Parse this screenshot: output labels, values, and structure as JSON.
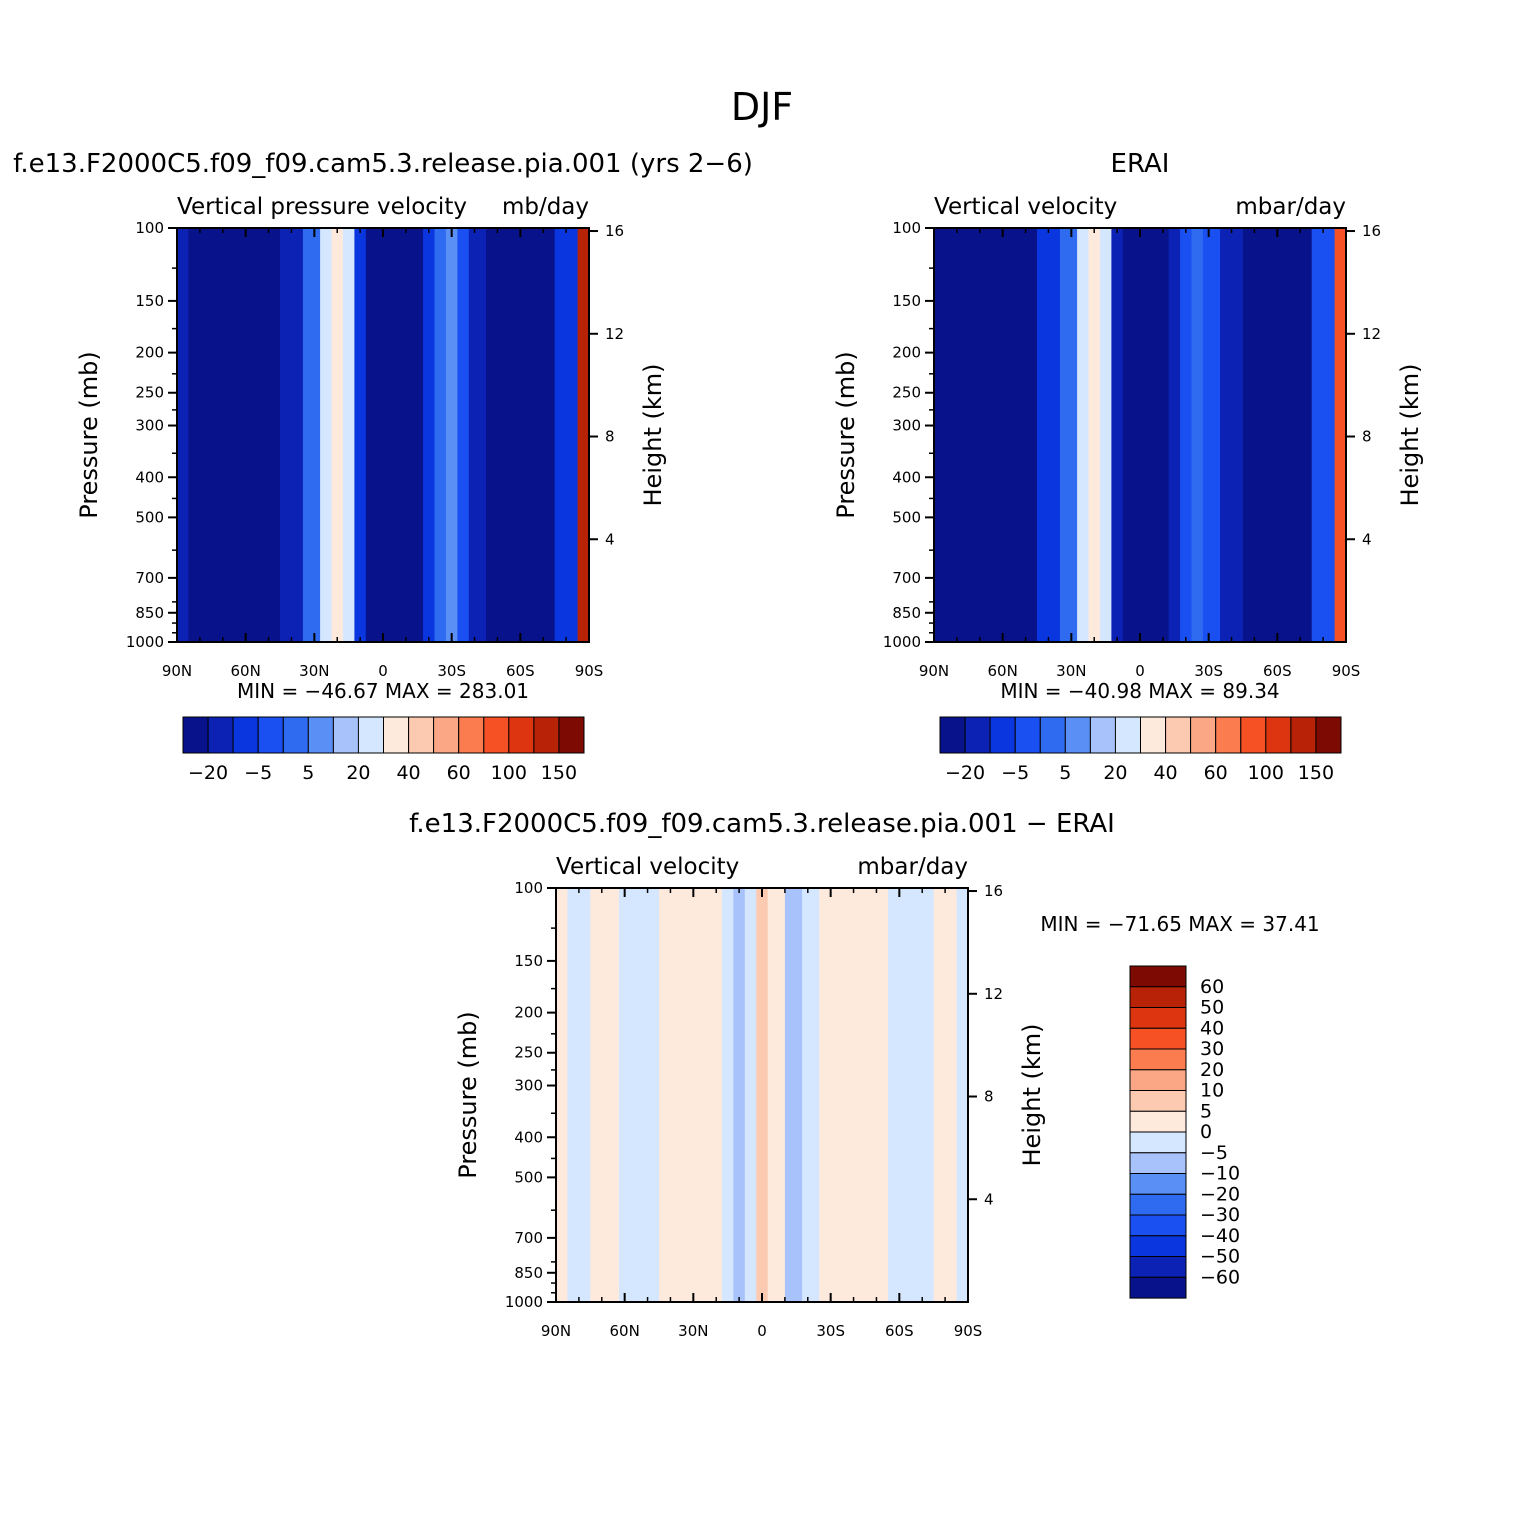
{
  "figure": {
    "title": "DJF"
  },
  "colors": {
    "model_levels": [
      "#08128a",
      "#0b22b5",
      "#0a36df",
      "#1a50f2",
      "#2f6bf0",
      "#5a8ff5",
      "#a8c3fb",
      "#d4e7fe",
      "#feeadd",
      "#fccab0",
      "#fba786",
      "#fb7c4f",
      "#f65125",
      "#dc3510",
      "#b82308",
      "#7e0a04"
    ],
    "diff_levels": [
      "#08128a",
      "#0b22b5",
      "#0a36df",
      "#1a50f2",
      "#2f6bf0",
      "#5a8ff5",
      "#a8c3fb",
      "#d4e7fe",
      "#feeadd",
      "#fccab0",
      "#fba786",
      "#fb7c4f",
      "#f65125",
      "#dc3510",
      "#b82308",
      "#7e0a04"
    ]
  },
  "chart_data": [
    {
      "type": "heatmap",
      "panel_title": "f.e13.F2000C5.f09_f09.cam5.3.release.pia.001 (yrs 2−6)",
      "left_label": "Vertical pressure velocity",
      "right_label": "mb/day",
      "xlabel": "",
      "ylabel": "Pressure (mb)",
      "ylabel_right": "Height (km)",
      "x_ticklabels": [
        "90N",
        "60N",
        "30N",
        "0",
        "30S",
        "60S",
        "90S"
      ],
      "y_ticklabels": [
        "100",
        "150",
        "200",
        "250",
        "300",
        "400",
        "500",
        "700",
        "850",
        "1000"
      ],
      "y2_ticklabels": [
        "16",
        "12",
        "8",
        "4"
      ],
      "xlim": [
        90,
        -90
      ],
      "ylim": [
        1000,
        100
      ],
      "yscale": "log",
      "stats": "MIN = −46.67   MAX = 283.01",
      "min": -46.67,
      "max": 283.01,
      "colorbar_ticklabels": [
        "−20",
        "−5",
        "5",
        "20",
        "40",
        "60",
        "100",
        "150"
      ],
      "colorbar_orientation": "horizontal",
      "bands": [
        {
          "lat": 90,
          "value": -20
        },
        {
          "lat": 80,
          "value": -25
        },
        {
          "lat": 70,
          "value": -28
        },
        {
          "lat": 60,
          "value": -30
        },
        {
          "lat": 50,
          "value": -25
        },
        {
          "lat": 40,
          "value": -18
        },
        {
          "lat": 30,
          "value": -5
        },
        {
          "lat": 25,
          "value": 10
        },
        {
          "lat": 20,
          "value": 22
        },
        {
          "lat": 15,
          "value": 15
        },
        {
          "lat": 10,
          "value": -15
        },
        {
          "lat": 5,
          "value": -40
        },
        {
          "lat": 0,
          "value": -45
        },
        {
          "lat": -5,
          "value": -42
        },
        {
          "lat": -10,
          "value": -38
        },
        {
          "lat": -15,
          "value": -30
        },
        {
          "lat": -20,
          "value": -15
        },
        {
          "lat": -25,
          "value": -5
        },
        {
          "lat": -30,
          "value": 0
        },
        {
          "lat": -35,
          "value": -10
        },
        {
          "lat": -40,
          "value": -20
        },
        {
          "lat": -50,
          "value": -30
        },
        {
          "lat": -55,
          "value": -40
        },
        {
          "lat": -60,
          "value": -35
        },
        {
          "lat": -70,
          "value": -25
        },
        {
          "lat": -80,
          "value": -15
        },
        {
          "lat": -90,
          "value": 100
        }
      ]
    },
    {
      "type": "heatmap",
      "panel_title": "ERAI",
      "left_label": "Vertical velocity",
      "right_label": "mbar/day",
      "xlabel": "",
      "ylabel": "Pressure (mb)",
      "ylabel_right": "Height (km)",
      "x_ticklabels": [
        "90N",
        "60N",
        "30N",
        "0",
        "30S",
        "60S",
        "90S"
      ],
      "y_ticklabels": [
        "100",
        "150",
        "200",
        "250",
        "300",
        "400",
        "500",
        "700",
        "850",
        "1000"
      ],
      "y2_ticklabels": [
        "16",
        "12",
        "8",
        "4"
      ],
      "xlim": [
        90,
        -90
      ],
      "ylim": [
        1000,
        100
      ],
      "yscale": "log",
      "stats": "MIN = −40.98   MAX =   89.34",
      "min": -40.98,
      "max": 89.34,
      "colorbar_ticklabels": [
        "−20",
        "−5",
        "5",
        "20",
        "40",
        "60",
        "100",
        "150"
      ],
      "colorbar_orientation": "horizontal",
      "bands": [
        {
          "lat": 90,
          "value": -25
        },
        {
          "lat": 80,
          "value": -25
        },
        {
          "lat": 70,
          "value": -28
        },
        {
          "lat": 60,
          "value": -35
        },
        {
          "lat": 50,
          "value": -25
        },
        {
          "lat": 40,
          "value": -15
        },
        {
          "lat": 30,
          "value": -5
        },
        {
          "lat": 25,
          "value": 10
        },
        {
          "lat": 20,
          "value": 20
        },
        {
          "lat": 15,
          "value": 10
        },
        {
          "lat": 10,
          "value": -20
        },
        {
          "lat": 5,
          "value": -40
        },
        {
          "lat": 0,
          "value": -40
        },
        {
          "lat": -5,
          "value": -38
        },
        {
          "lat": -10,
          "value": -30
        },
        {
          "lat": -15,
          "value": -20
        },
        {
          "lat": -20,
          "value": -10
        },
        {
          "lat": -25,
          "value": -5
        },
        {
          "lat": -30,
          "value": -8
        },
        {
          "lat": -40,
          "value": -18
        },
        {
          "lat": -50,
          "value": -28
        },
        {
          "lat": -60,
          "value": -32
        },
        {
          "lat": -70,
          "value": -25
        },
        {
          "lat": -80,
          "value": -10
        },
        {
          "lat": -90,
          "value": 60
        }
      ]
    },
    {
      "type": "heatmap",
      "panel_title": "f.e13.F2000C5.f09_f09.cam5.3.release.pia.001 − ERAI",
      "left_label": "Vertical velocity",
      "right_label": "mbar/day",
      "xlabel": "",
      "ylabel": "Pressure (mb)",
      "ylabel_right": "Height (km)",
      "x_ticklabels": [
        "90N",
        "60N",
        "30N",
        "0",
        "30S",
        "60S",
        "90S"
      ],
      "y_ticklabels": [
        "100",
        "150",
        "200",
        "250",
        "300",
        "400",
        "500",
        "700",
        "850",
        "1000"
      ],
      "y2_ticklabels": [
        "16",
        "12",
        "8",
        "4"
      ],
      "xlim": [
        90,
        -90
      ],
      "ylim": [
        1000,
        100
      ],
      "yscale": "log",
      "stats": "MIN = −71.65   MAX =   37.41",
      "min": -71.65,
      "max": 37.41,
      "colorbar_ticklabels": [
        "60",
        "50",
        "40",
        "30",
        "20",
        "10",
        "5",
        "0",
        "−5",
        "−10",
        "−20",
        "−30",
        "−40",
        "−50",
        "−60"
      ],
      "colorbar_orientation": "vertical",
      "bands": [
        {
          "lat": 90,
          "value": 2
        },
        {
          "lat": 80,
          "value": -3
        },
        {
          "lat": 70,
          "value": 2
        },
        {
          "lat": 65,
          "value": 3
        },
        {
          "lat": 60,
          "value": -3
        },
        {
          "lat": 50,
          "value": -3
        },
        {
          "lat": 40,
          "value": 2
        },
        {
          "lat": 30,
          "value": 3
        },
        {
          "lat": 20,
          "value": 2
        },
        {
          "lat": 15,
          "value": -2
        },
        {
          "lat": 10,
          "value": -7
        },
        {
          "lat": 5,
          "value": -2
        },
        {
          "lat": 0,
          "value": 7
        },
        {
          "lat": -5,
          "value": 4
        },
        {
          "lat": -15,
          "value": -8
        },
        {
          "lat": -20,
          "value": -3
        },
        {
          "lat": -30,
          "value": 3
        },
        {
          "lat": -40,
          "value": 3
        },
        {
          "lat": -50,
          "value": 2
        },
        {
          "lat": -60,
          "value": -2
        },
        {
          "lat": -70,
          "value": -3
        },
        {
          "lat": -80,
          "value": 2
        },
        {
          "lat": -90,
          "value": -3
        }
      ]
    }
  ]
}
